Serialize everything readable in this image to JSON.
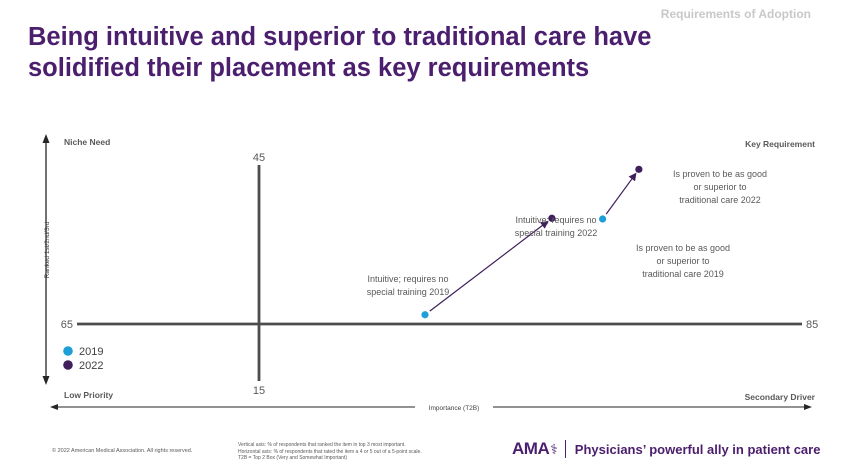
{
  "header": {
    "section": "Requirements of Adoption",
    "title_lines": [
      "Being intuitive and superior to traditional care have",
      "solidified their placement as key requirements"
    ]
  },
  "chart_data": {
    "type": "scatter",
    "xlabel": "Importance (T2B)",
    "ylabel": "Ranked 1st/2nd/3rd",
    "xlim": [
      65,
      85
    ],
    "ylim": [
      15,
      45
    ],
    "quadrants": {
      "top_left": "Niche Need",
      "top_right": "Key Requirement",
      "bottom_left": "Low Priority",
      "bottom_right": "Secondary Driver"
    },
    "legend": [
      {
        "name": "2019",
        "color": "#1e9fd8"
      },
      {
        "name": "2022",
        "color": "#3f1f5c"
      }
    ],
    "series": [
      {
        "name": "2019",
        "color": "#1e9fd8",
        "points": [
          {
            "id": "intuitive",
            "x": 74.6,
            "y": 24.2,
            "label": "Intuitive; requires no special training 2019"
          },
          {
            "id": "superior",
            "x": 79.5,
            "y": 37.5,
            "label": "Is proven to be as good or superior to traditional care 2019"
          }
        ]
      },
      {
        "name": "2022",
        "color": "#3f1f5c",
        "points": [
          {
            "id": "intuitive",
            "x": 78.1,
            "y": 37.6,
            "label": "Intuitive; requires no special training 2022"
          },
          {
            "id": "superior",
            "x": 80.5,
            "y": 44.4,
            "label": "Is proven to be as good or superior to traditional care 2022"
          }
        ]
      }
    ],
    "arrows": [
      {
        "from_x": 74.6,
        "from_y": 24.2,
        "to_x": 78.1,
        "to_y": 37.6
      },
      {
        "from_x": 79.5,
        "from_y": 37.5,
        "to_x": 80.5,
        "to_y": 44.4
      }
    ]
  },
  "footer": {
    "copyright": "© 2022 American Medical Association. All rights reserved.",
    "notes": [
      "Vertical axis: % of respondents that ranked the item in top 3 most important.",
      "Horizontal axis: % of respondents that rated the item a 4 or 5 out of a 5-point scale.",
      "T2B = Top 2 Box (Very and Somewhat Important)"
    ],
    "logo": "AMA",
    "tagline": "Physicians’ powerful ally in patient care"
  }
}
